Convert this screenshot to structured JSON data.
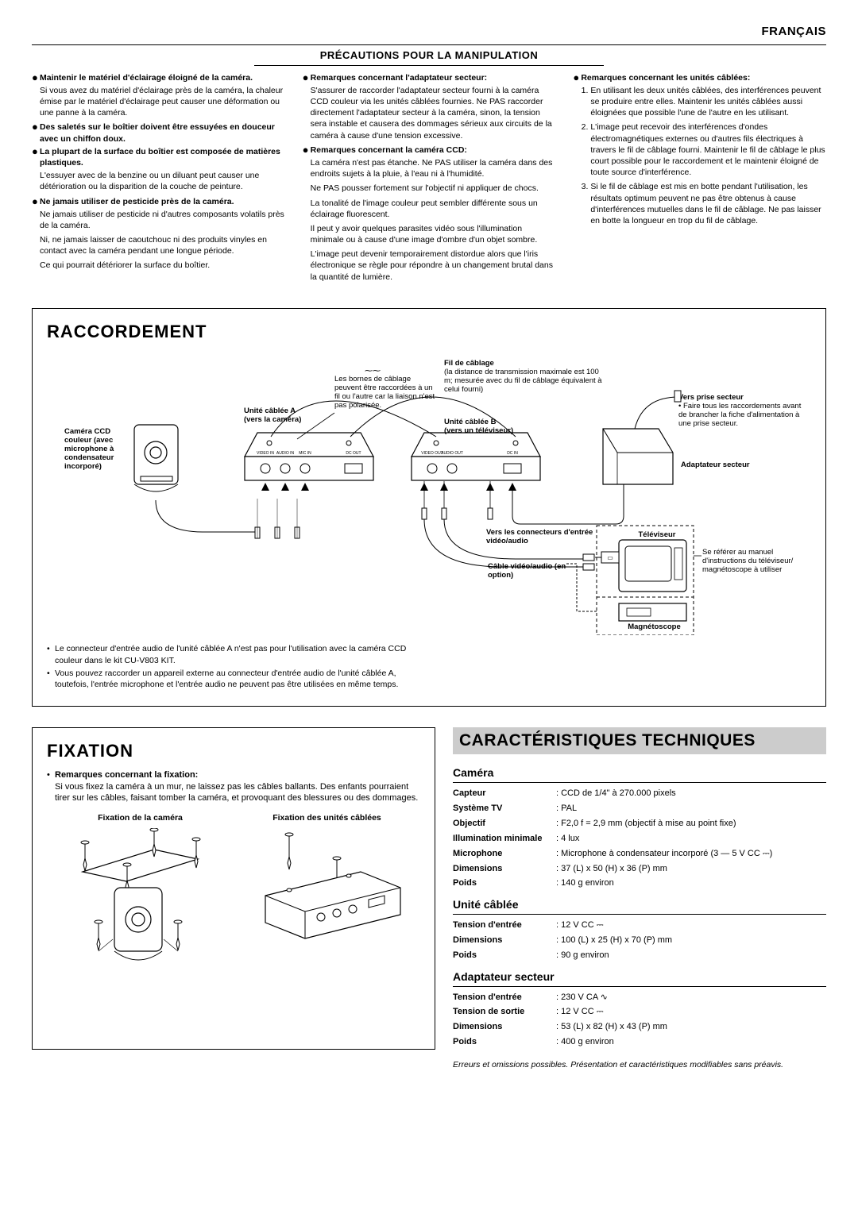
{
  "lang_header": "FRANÇAIS",
  "precautions": {
    "title": "PRÉCAUTIONS POUR LA MANIPULATION",
    "col1": [
      {
        "bold": "Maintenir le matériel d'éclairage éloigné de la caméra.",
        "text": "Si vous avez du matériel d'éclairage près de la caméra, la chaleur émise par le matériel d'éclairage peut causer une déformation ou une panne à la caméra."
      },
      {
        "bold": "Des saletés sur le boîtier doivent être essuyées en douceur avec un chiffon doux."
      },
      {
        "bold": "La plupart de la surface du boîtier est composée de matières plastiques.",
        "text": "L'essuyer avec de la benzine ou un diluant peut causer une détérioration ou la disparition de la couche de peinture."
      },
      {
        "bold": "Ne jamais utiliser de pesticide près de la caméra.",
        "text": "Ne jamais utiliser de pesticide ni d'autres composants volatils près de la caméra.\nNi, ne jamais laisser de caoutchouc ni des produits vinyles en contact avec la caméra pendant une longue période.\nCe qui pourrait détériorer la surface du boîtier."
      }
    ],
    "col2": [
      {
        "bold": "Remarques concernant l'adaptateur secteur:",
        "text": "S'assurer de raccorder l'adaptateur secteur fourni à la caméra CCD couleur via les unités câblées fournies. Ne PAS raccorder directement l'adaptateur secteur à la caméra, sinon, la tension sera instable et causera des dommages sérieux aux circuits de la caméra à cause d'une tension excessive."
      },
      {
        "bold": "Remarques concernant la caméra CCD:",
        "text": "La caméra n'est pas étanche. Ne PAS utiliser la caméra dans des endroits sujets à la pluie, à l'eau ni à l'humidité.\nNe PAS pousser fortement sur l'objectif ni appliquer de chocs.\nLa tonalité de l'image couleur peut sembler différente sous un éclairage fluorescent.\nIl peut y avoir quelques parasites vidéo sous l'illumination minimale ou à cause d'une image d'ombre d'un objet sombre.\nL'image peut devenir temporairement distordue alors que l'iris électronique se règle pour répondre à un changement brutal dans la quantité de lumière."
      }
    ],
    "col3": {
      "bold": "Remarques concernant les unités câblées:",
      "items": [
        "En utilisant les deux unités câblées, des interférences peuvent se produire entre elles. Maintenir les unités câblées aussi éloignées que possible l'une de l'autre en les utilisant.",
        "L'image peut recevoir des interférences d'ondes électromagnétiques externes ou d'autres fils électriques à travers le fil de câblage fourni. Maintenir le fil de câblage le plus court possible pour le raccordement et le maintenir éloigné de toute source d'interférence.",
        "Si le fil de câblage est mis en botte pendant l'utilisation, les résultats optimum peuvent ne pas être obtenus à cause d'interférences mutuelles dans le fil de câblage. Ne pas laisser en botte la longueur en trop du fil de câblage."
      ]
    }
  },
  "raccordement": {
    "title": "RACCORDEMENT",
    "labels": {
      "camera": "Caméra CCD couleur (avec microphone à condensateur incorporé)",
      "unite_a": "Unité câblée A\n(vers la caméra)",
      "unite_b": "Unité câblée B\n(vers un téléviseur)",
      "bornes": "Les bornes de câblage peuvent être raccordées à un fil ou l'autre car la liaison n'est pas polarisée.",
      "fil": "Fil de câblage",
      "fil_sub": "(la distance de transmission maximale est 100 m; mesurée avec du fil de câblage équivalent à celui fourni)",
      "prise": "Vers prise secteur",
      "prise_sub": "• Faire tous les raccordements avant de brancher la fiche d'alimentation à une prise secteur.",
      "adapt": "Adaptateur secteur",
      "vers_conn": "Vers les connecteurs d'entrée vidéo/audio",
      "tv": "Téléviseur",
      "vcr": "Magnétoscope",
      "cable_va": "Câble vidéo/audio (en option)",
      "tv_note": "Se référer au manuel d'instructions du téléviseur/ magnétoscope à utiliser",
      "ports_a": {
        "v": "VIDEO IN",
        "a": "AUDIO IN",
        "m": "MIC IN",
        "d": "DC OUT"
      },
      "ports_b": {
        "v": "VIDEO OUT",
        "a": "AUDIO OUT",
        "d": "DC IN"
      }
    },
    "notes": [
      "Le connecteur d'entrée audio de l'unité câblée A n'est pas pour l'utilisation avec la caméra CCD couleur dans le kit CU-V803 KIT.",
      "Vous pouvez raccorder un appareil externe au connecteur d'entrée audio de l'unité câblée A, toutefois, l'entrée microphone et l'entrée audio ne peuvent pas être utilisées en même temps."
    ]
  },
  "fixation": {
    "title": "FIXATION",
    "note_bold": "Remarques concernant la fixation:",
    "note_text": "Si vous fixez la caméra à un mur, ne laissez pas les câbles ballants. Des enfants pourraient tirer sur les câbles, faisant tomber la caméra, et provoquant des blessures ou des dommages.",
    "cap1": "Fixation de la caméra",
    "cap2": "Fixation des unités câblées"
  },
  "specs": {
    "title": "CARACTÉRISTIQUES TECHNIQUES",
    "camera": {
      "title": "Caméra",
      "rows": [
        {
          "label": "Capteur",
          "value": ": CCD de 1/4\" à 270.000 pixels"
        },
        {
          "label": "Système TV",
          "value": ": PAL"
        },
        {
          "label": "Objectif",
          "value": ": F2,0   f = 2,9 mm (objectif à mise au point fixe)"
        },
        {
          "label": "Illumination minimale",
          "value": ": 4 lux"
        },
        {
          "label": "Microphone",
          "value": ": Microphone à condensateur incorporé (3 — 5 V CC ⎓)"
        },
        {
          "label": "Dimensions",
          "value": ": 37 (L) x 50 (H) x 36 (P) mm"
        },
        {
          "label": "Poids",
          "value": ": 140 g environ"
        }
      ]
    },
    "unite": {
      "title": "Unité câblée",
      "rows": [
        {
          "label": "Tension d'entrée",
          "value": ": 12 V CC ⎓"
        },
        {
          "label": "Dimensions",
          "value": ": 100 (L) x 25 (H) x 70 (P) mm"
        },
        {
          "label": "Poids",
          "value": ": 90 g environ"
        }
      ]
    },
    "adapt": {
      "title": "Adaptateur secteur",
      "rows": [
        {
          "label": "Tension d'entrée",
          "value": ": 230 V CA ∿"
        },
        {
          "label": "Tension de sortie",
          "value": ": 12 V CC ⎓"
        },
        {
          "label": "Dimensions",
          "value": ": 53 (L) x 82 (H) x 43 (P) mm"
        },
        {
          "label": "Poids",
          "value": ": 400 g environ"
        }
      ]
    },
    "footnote": "Erreurs et omissions possibles. Présentation et caractéristiques modifiables sans préavis."
  }
}
